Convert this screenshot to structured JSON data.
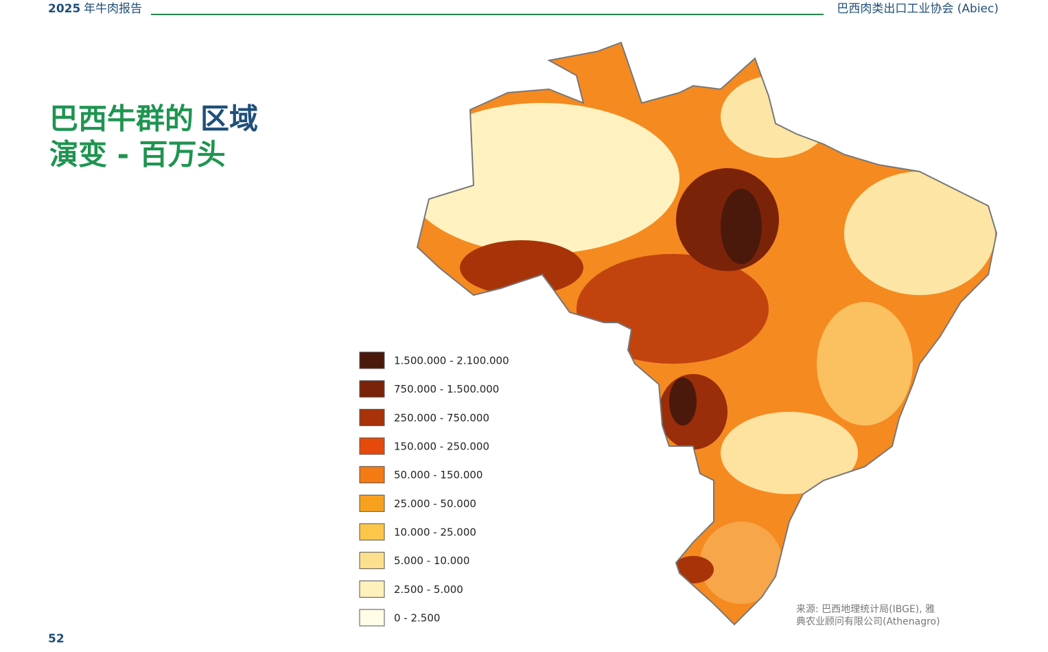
{
  "header": {
    "year": "2025",
    "report": "年牛肉报告",
    "org": "巴西肉类出口工业协会 (Abiec)"
  },
  "title": {
    "part1": "巴西牛群的",
    "part2": "区域",
    "line2": "演变 - 百万头"
  },
  "legend": {
    "items": [
      {
        "label": "1.500.000 - 2.100.000",
        "color": "#4a190b"
      },
      {
        "label": "750.000 - 1.500.000",
        "color": "#7b2309"
      },
      {
        "label": "250.000 - 750.000",
        "color": "#a93309"
      },
      {
        "label": "150.000 - 250.000",
        "color": "#e5490c"
      },
      {
        "label": "50.000  - 150.000",
        "color": "#f47a12"
      },
      {
        "label": "25.000 - 50.000",
        "color": "#f7a11f"
      },
      {
        "label": "10.000 - 25.000",
        "color": "#fcc64b"
      },
      {
        "label": "5.000 - 10.000",
        "color": "#fde08d"
      },
      {
        "label": "2.500 - 5.000",
        "color": "#fef1bc"
      },
      {
        "label": "0 - 2.500",
        "color": "#fffde6"
      }
    ]
  },
  "source": {
    "line1": "来源: 巴西地理统计局(IBGE), 雅",
    "line2": "典农业顾问有限公司(Athenagro)"
  },
  "page_number": "52"
}
